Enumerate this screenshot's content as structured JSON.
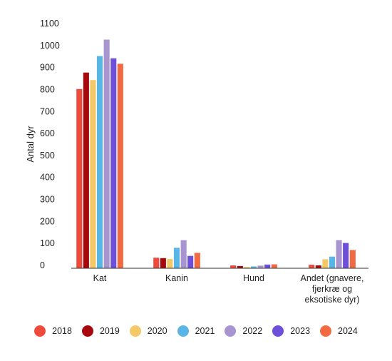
{
  "chart_data": {
    "type": "bar",
    "title": "",
    "xlabel": "",
    "ylabel": "Antal dyr",
    "ylim": [
      0,
      1100
    ],
    "yticks": [
      0,
      100,
      200,
      300,
      400,
      500,
      600,
      700,
      800,
      900,
      1000,
      1100
    ],
    "grid": false,
    "legend_position": "bottom",
    "categories": [
      [
        "Kat"
      ],
      [
        "Kanin"
      ],
      [
        "Hund"
      ],
      [
        "Andet (gnavere,",
        "fjerkræ og",
        "eksotiske dyr)"
      ]
    ],
    "series": [
      {
        "name": "2018",
        "color": "#EE4B3C",
        "values": [
          815,
          48,
          13,
          16
        ]
      },
      {
        "name": "2019",
        "color": "#A8080B",
        "values": [
          890,
          46,
          10,
          13
        ]
      },
      {
        "name": "2020",
        "color": "#F2C966",
        "values": [
          856,
          42,
          6,
          41
        ]
      },
      {
        "name": "2021",
        "color": "#59B5E4",
        "values": [
          965,
          93,
          8,
          53
        ]
      },
      {
        "name": "2022",
        "color": "#A894CF",
        "values": [
          1040,
          128,
          12,
          128
        ]
      },
      {
        "name": "2023",
        "color": "#6D4FD9",
        "values": [
          955,
          56,
          17,
          115
        ]
      },
      {
        "name": "2024",
        "color": "#F26A42",
        "values": [
          930,
          70,
          18,
          83
        ]
      }
    ]
  }
}
